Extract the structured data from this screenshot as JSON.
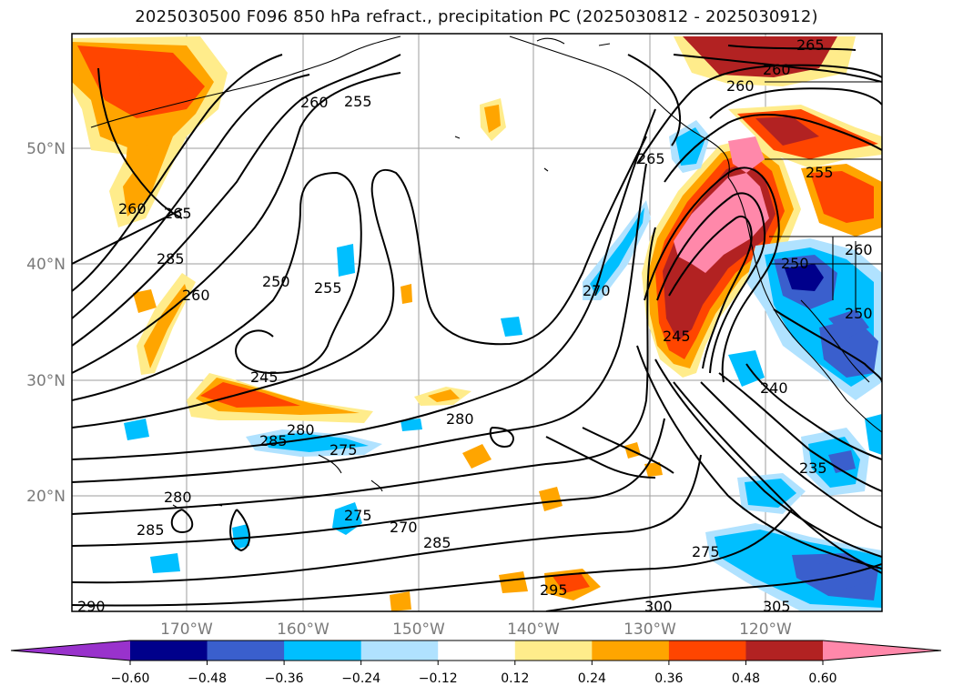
{
  "title": "2025030500 F096 850 hPa refract., precipitation PC (2025030812 - 2025030912)",
  "map": {
    "lat_labels": [
      "50°N",
      "40°N",
      "30°N",
      "20°N"
    ],
    "lon_labels": [
      "170°W",
      "160°W",
      "150°W",
      "140°W",
      "130°W",
      "120°W"
    ],
    "contour_labels": [
      "265",
      "260",
      "260",
      "255",
      "260",
      "265",
      "265",
      "285",
      "250",
      "255",
      "260",
      "245",
      "280",
      "285",
      "275",
      "280",
      "275",
      "270",
      "285",
      "280",
      "285",
      "290",
      "295",
      "300",
      "305",
      "245",
      "240",
      "235",
      "275",
      "255",
      "260",
      "250",
      "250",
      "260",
      "270"
    ]
  },
  "colorbar": {
    "ticks": [
      "−0.60",
      "−0.48",
      "−0.36",
      "−0.24",
      "−0.12",
      "0.12",
      "0.24",
      "0.36",
      "0.48",
      "0.60"
    ],
    "colors": [
      "#9932cc",
      "#00008b",
      "#3a5fcd",
      "#00bfff",
      "#b0e2ff",
      "#ffffff",
      "#ffec8b",
      "#ffa500",
      "#ff4500",
      "#b22222",
      "#ff88aa"
    ]
  }
}
